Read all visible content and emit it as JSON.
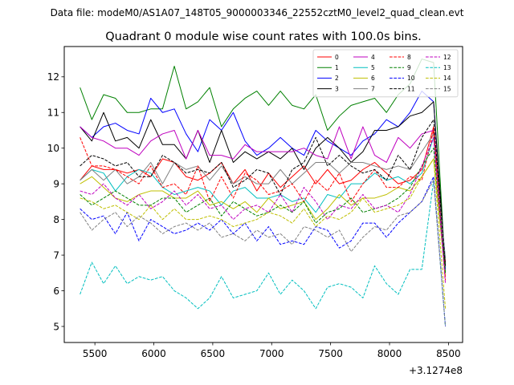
{
  "figure": {
    "suptitle": "Data file: modeM0/AS1A07_148T05_9000003346_22552cztM0_level2_quad_clean.evt"
  },
  "chart_data": {
    "type": "line",
    "title": "Quadrant 0 module wise count rates with 100.0s bins.",
    "xlabel": "",
    "ylabel": "",
    "x_offset_label": "+3.1274e8",
    "xlim": [
      5240,
      8620
    ],
    "ylim": [
      4.55,
      12.85
    ],
    "xticks": [
      5500,
      6000,
      6500,
      7000,
      7500,
      8000,
      8500
    ],
    "xtick_labels": [
      "5500",
      "6000",
      "6500",
      "7000",
      "7500",
      "8000",
      "8500"
    ],
    "yticks": [
      5,
      6,
      7,
      8,
      9,
      10,
      11,
      12
    ],
    "ytick_labels": [
      "5",
      "6",
      "7",
      "8",
      "9",
      "10",
      "11",
      "12"
    ],
    "grid": false,
    "legend_location": "upper right",
    "legend_columns": 4,
    "x": [
      5374,
      5474,
      5574,
      5674,
      5774,
      5874,
      5974,
      6074,
      6174,
      6274,
      6374,
      6474,
      6574,
      6674,
      6774,
      6874,
      6974,
      7074,
      7174,
      7274,
      7374,
      7474,
      7574,
      7674,
      7774,
      7874,
      7974,
      8074,
      8174,
      8274,
      8374,
      8474
    ],
    "series": [
      {
        "name": "0",
        "color": "#ff0000",
        "dash": "solid",
        "values": [
          9.1,
          9.5,
          9.4,
          9.4,
          9.3,
          9.4,
          9.2,
          9.7,
          9.6,
          9.2,
          9.1,
          9.3,
          9.6,
          9.0,
          9.4,
          8.8,
          9.3,
          8.9,
          9.2,
          9.5,
          9.0,
          9.4,
          9.0,
          9.1,
          9.4,
          9.6,
          9.3,
          9.0,
          9.1,
          9.4,
          10.6,
          6.8
        ]
      },
      {
        "name": "1",
        "color": "#008000",
        "dash": "solid",
        "values": [
          11.7,
          10.8,
          11.5,
          11.4,
          11.0,
          11.0,
          11.1,
          11.1,
          12.3,
          11.1,
          11.3,
          11.7,
          10.6,
          11.1,
          11.4,
          11.6,
          11.2,
          11.6,
          11.2,
          11.1,
          11.5,
          10.5,
          10.9,
          11.2,
          11.3,
          11.4,
          11.0,
          11.5,
          11.8,
          12.5,
          12.4,
          6.5
        ]
      },
      {
        "name": "2",
        "color": "#0000ff",
        "dash": "solid",
        "values": [
          10.6,
          10.3,
          10.6,
          10.7,
          10.5,
          10.4,
          11.4,
          11.0,
          11.1,
          10.4,
          9.9,
          10.8,
          10.5,
          11.0,
          10.2,
          9.8,
          10.0,
          10.3,
          10.0,
          9.8,
          10.5,
          10.2,
          10.0,
          9.8,
          10.2,
          10.4,
          10.8,
          10.6,
          11.0,
          11.6,
          11.3,
          6.6
        ]
      },
      {
        "name": "3",
        "color": "#000000",
        "dash": "solid",
        "values": [
          10.6,
          10.2,
          11.0,
          10.2,
          10.3,
          10.0,
          10.8,
          10.1,
          10.1,
          9.7,
          10.5,
          9.6,
          10.5,
          9.6,
          9.9,
          9.7,
          9.9,
          9.7,
          10.0,
          9.4,
          10.0,
          10.3,
          10.0,
          9.6,
          9.9,
          10.5,
          10.5,
          10.6,
          10.9,
          11.0,
          11.3,
          6.7
        ]
      },
      {
        "name": "4",
        "color": "#bf00bf",
        "dash": "solid",
        "values": [
          10.6,
          10.3,
          10.2,
          10.0,
          10.0,
          9.8,
          10.2,
          10.4,
          10.5,
          9.7,
          10.5,
          9.8,
          9.8,
          9.7,
          10.1,
          9.9,
          9.9,
          9.9,
          9.9,
          10.0,
          9.8,
          9.7,
          10.6,
          9.7,
          10.6,
          9.8,
          9.6,
          10.3,
          10.0,
          10.4,
          10.5,
          6.4
        ]
      },
      {
        "name": "5",
        "color": "#00bfbf",
        "dash": "solid",
        "values": [
          9.1,
          9.4,
          9.3,
          8.8,
          9.2,
          9.4,
          9.3,
          8.9,
          8.7,
          8.8,
          8.9,
          8.8,
          8.4,
          8.8,
          8.9,
          8.6,
          8.6,
          8.7,
          8.5,
          8.6,
          8.2,
          8.7,
          8.6,
          9.0,
          9.0,
          9.3,
          9.1,
          9.2,
          9.0,
          9.3,
          10.3,
          6.9
        ]
      },
      {
        "name": "6",
        "color": "#bfbf00",
        "dash": "solid",
        "values": [
          9.0,
          9.2,
          8.9,
          8.6,
          8.5,
          8.7,
          8.8,
          8.8,
          8.6,
          8.6,
          8.8,
          8.4,
          8.5,
          8.3,
          8.5,
          8.2,
          8.6,
          8.3,
          8.4,
          8.5,
          8.0,
          8.3,
          8.7,
          8.4,
          8.6,
          8.6,
          8.7,
          8.9,
          8.8,
          9.2,
          9.7,
          6.4
        ]
      },
      {
        "name": "7",
        "color": "#808080",
        "dash": "solid",
        "values": [
          9.1,
          9.4,
          9.1,
          9.4,
          9.0,
          9.2,
          9.6,
          9.0,
          9.6,
          9.4,
          9.5,
          9.1,
          9.5,
          9.0,
          9.2,
          9.0,
          9.0,
          9.4,
          9.0,
          9.3,
          9.6,
          9.6,
          9.3,
          9.6,
          9.6,
          9.5,
          9.4,
          9.5,
          9.4,
          9.9,
          10.4,
          6.9
        ]
      },
      {
        "name": "8",
        "color": "#ff0000",
        "dash": "dashed",
        "values": [
          10.3,
          9.5,
          9.5,
          9.4,
          9.2,
          9.0,
          9.5,
          8.9,
          9.0,
          8.7,
          9.5,
          8.5,
          9.2,
          8.6,
          9.3,
          9.1,
          8.7,
          8.8,
          9.0,
          8.5,
          9.1,
          8.8,
          9.3,
          8.5,
          9.0,
          9.4,
          8.9,
          8.9,
          9.2,
          9.1,
          10.5,
          6.3
        ]
      },
      {
        "name": "9",
        "color": "#008000",
        "dash": "dashed",
        "values": [
          8.7,
          8.4,
          8.6,
          8.8,
          8.6,
          8.4,
          8.4,
          8.6,
          8.6,
          8.2,
          8.4,
          8.6,
          8.1,
          8.5,
          8.3,
          8.1,
          8.2,
          8.4,
          8.2,
          8.5,
          7.9,
          8.2,
          8.3,
          8.6,
          8.2,
          8.3,
          8.4,
          8.6,
          8.9,
          9.5,
          10.0,
          6.5
        ]
      },
      {
        "name": "10",
        "color": "#0000ff",
        "dash": "dashed",
        "values": [
          8.3,
          8.0,
          8.1,
          7.6,
          8.2,
          7.4,
          8.0,
          7.8,
          7.6,
          7.7,
          7.9,
          7.7,
          8.0,
          7.6,
          7.9,
          7.4,
          7.8,
          7.3,
          7.4,
          7.3,
          7.8,
          7.7,
          7.2,
          7.4,
          7.9,
          7.9,
          7.5,
          7.9,
          8.2,
          8.5,
          9.2,
          5.0
        ]
      },
      {
        "name": "11",
        "color": "#000000",
        "dash": "dashed",
        "values": [
          9.5,
          9.8,
          9.7,
          9.5,
          9.6,
          9.2,
          9.2,
          9.8,
          9.6,
          9.3,
          9.4,
          9.3,
          9.6,
          8.9,
          9.1,
          9.4,
          9.3,
          8.7,
          9.4,
          9.6,
          10.3,
          9.5,
          9.8,
          9.5,
          9.3,
          9.4,
          9.1,
          9.8,
          9.4,
          10.3,
          10.8,
          6.7
        ]
      },
      {
        "name": "12",
        "color": "#bf00bf",
        "dash": "dashed",
        "values": [
          8.8,
          8.7,
          9.0,
          8.6,
          8.4,
          8.7,
          8.3,
          8.5,
          8.8,
          8.4,
          8.7,
          8.3,
          8.4,
          8.0,
          8.3,
          8.4,
          8.2,
          8.7,
          8.2,
          8.9,
          8.5,
          8.0,
          8.4,
          8.3,
          8.7,
          8.3,
          8.4,
          8.2,
          8.7,
          9.5,
          10.3,
          6.2
        ]
      },
      {
        "name": "13",
        "color": "#00bfbf",
        "dash": "dashed",
        "values": [
          5.9,
          6.8,
          6.2,
          6.7,
          6.2,
          6.4,
          6.3,
          6.4,
          6.0,
          5.8,
          5.5,
          5.8,
          6.4,
          5.8,
          5.9,
          6.0,
          6.5,
          5.9,
          6.3,
          6.0,
          5.5,
          6.1,
          6.2,
          6.1,
          5.8,
          6.7,
          6.2,
          5.9,
          6.6,
          6.6,
          9.1,
          5.0
        ]
      },
      {
        "name": "14",
        "color": "#bfbf00",
        "dash": "dashed",
        "values": [
          8.6,
          8.5,
          8.3,
          8.4,
          8.2,
          8.0,
          8.4,
          8.0,
          8.3,
          8.0,
          8.0,
          8.1,
          8.0,
          7.8,
          7.9,
          8.0,
          8.2,
          8.1,
          7.9,
          8.3,
          7.8,
          8.1,
          8.0,
          8.2,
          8.6,
          8.2,
          8.3,
          8.4,
          8.6,
          9.2,
          9.7,
          5.5
        ]
      },
      {
        "name": "15",
        "color": "#808080",
        "dash": "dashed",
        "values": [
          8.2,
          7.7,
          8.0,
          8.2,
          7.8,
          8.1,
          7.9,
          7.6,
          7.8,
          7.9,
          7.7,
          7.9,
          7.5,
          7.6,
          7.4,
          7.7,
          7.5,
          7.6,
          7.3,
          7.8,
          7.7,
          7.5,
          7.7,
          7.1,
          7.5,
          7.8,
          7.7,
          8.1,
          8.2,
          8.5,
          9.1,
          5.0
        ]
      }
    ]
  }
}
